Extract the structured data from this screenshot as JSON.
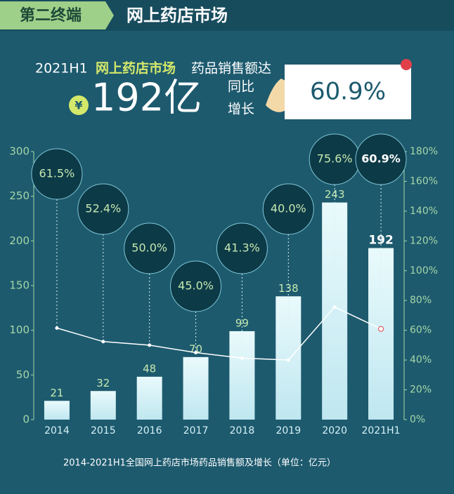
{
  "header": {
    "tag": "第二终端",
    "title": "网上药店市场"
  },
  "headline": {
    "parts": [
      "2021H1",
      "网上药店市场",
      "药品销售额达"
    ],
    "currency": "¥",
    "amount": "192亿",
    "growth_words": [
      "同比",
      "增长"
    ],
    "growth": "60.9%"
  },
  "chart_data": {
    "type": "bar_line",
    "caption": "2014-2021H1全国网上药店市场药品销售额及增长（单位：亿元）",
    "categories": [
      "2014",
      "2015",
      "2016",
      "2017",
      "2018",
      "2019",
      "2020",
      "2021H1"
    ],
    "series": [
      {
        "kind": "bar",
        "color": "#d6f1f6",
        "values": [
          21,
          32,
          48,
          70,
          99,
          138,
          243,
          192
        ]
      },
      {
        "kind": "line",
        "axis": "y2",
        "color": "#ffffff",
        "values": [
          61.5,
          52.4,
          50.0,
          45.0,
          41.3,
          40.0,
          75.6,
          60.9
        ],
        "value_labels": [
          "61.5%",
          "52.4%",
          "50.0%",
          "45.0%",
          "41.3%",
          "40.0%",
          "75.6%",
          "60.9%"
        ]
      }
    ],
    "ylim": [
      0,
      300
    ],
    "yticks": [
      0,
      50,
      100,
      150,
      200,
      250,
      300
    ],
    "y2lim": [
      0,
      180
    ],
    "y2ticks": [
      {
        "value": 0,
        "label": "0%"
      },
      {
        "value": 20,
        "label": "20%"
      },
      {
        "value": 40,
        "label": "40%"
      },
      {
        "value": 60,
        "label": "60%"
      },
      {
        "value": 80,
        "label": "80%"
      },
      {
        "value": 100,
        "label": "100%"
      },
      {
        "value": 120,
        "label": "120%"
      },
      {
        "value": 140,
        "label": "140%"
      },
      {
        "value": 160,
        "label": "160%"
      },
      {
        "value": 180,
        "label": "180%"
      }
    ]
  }
}
